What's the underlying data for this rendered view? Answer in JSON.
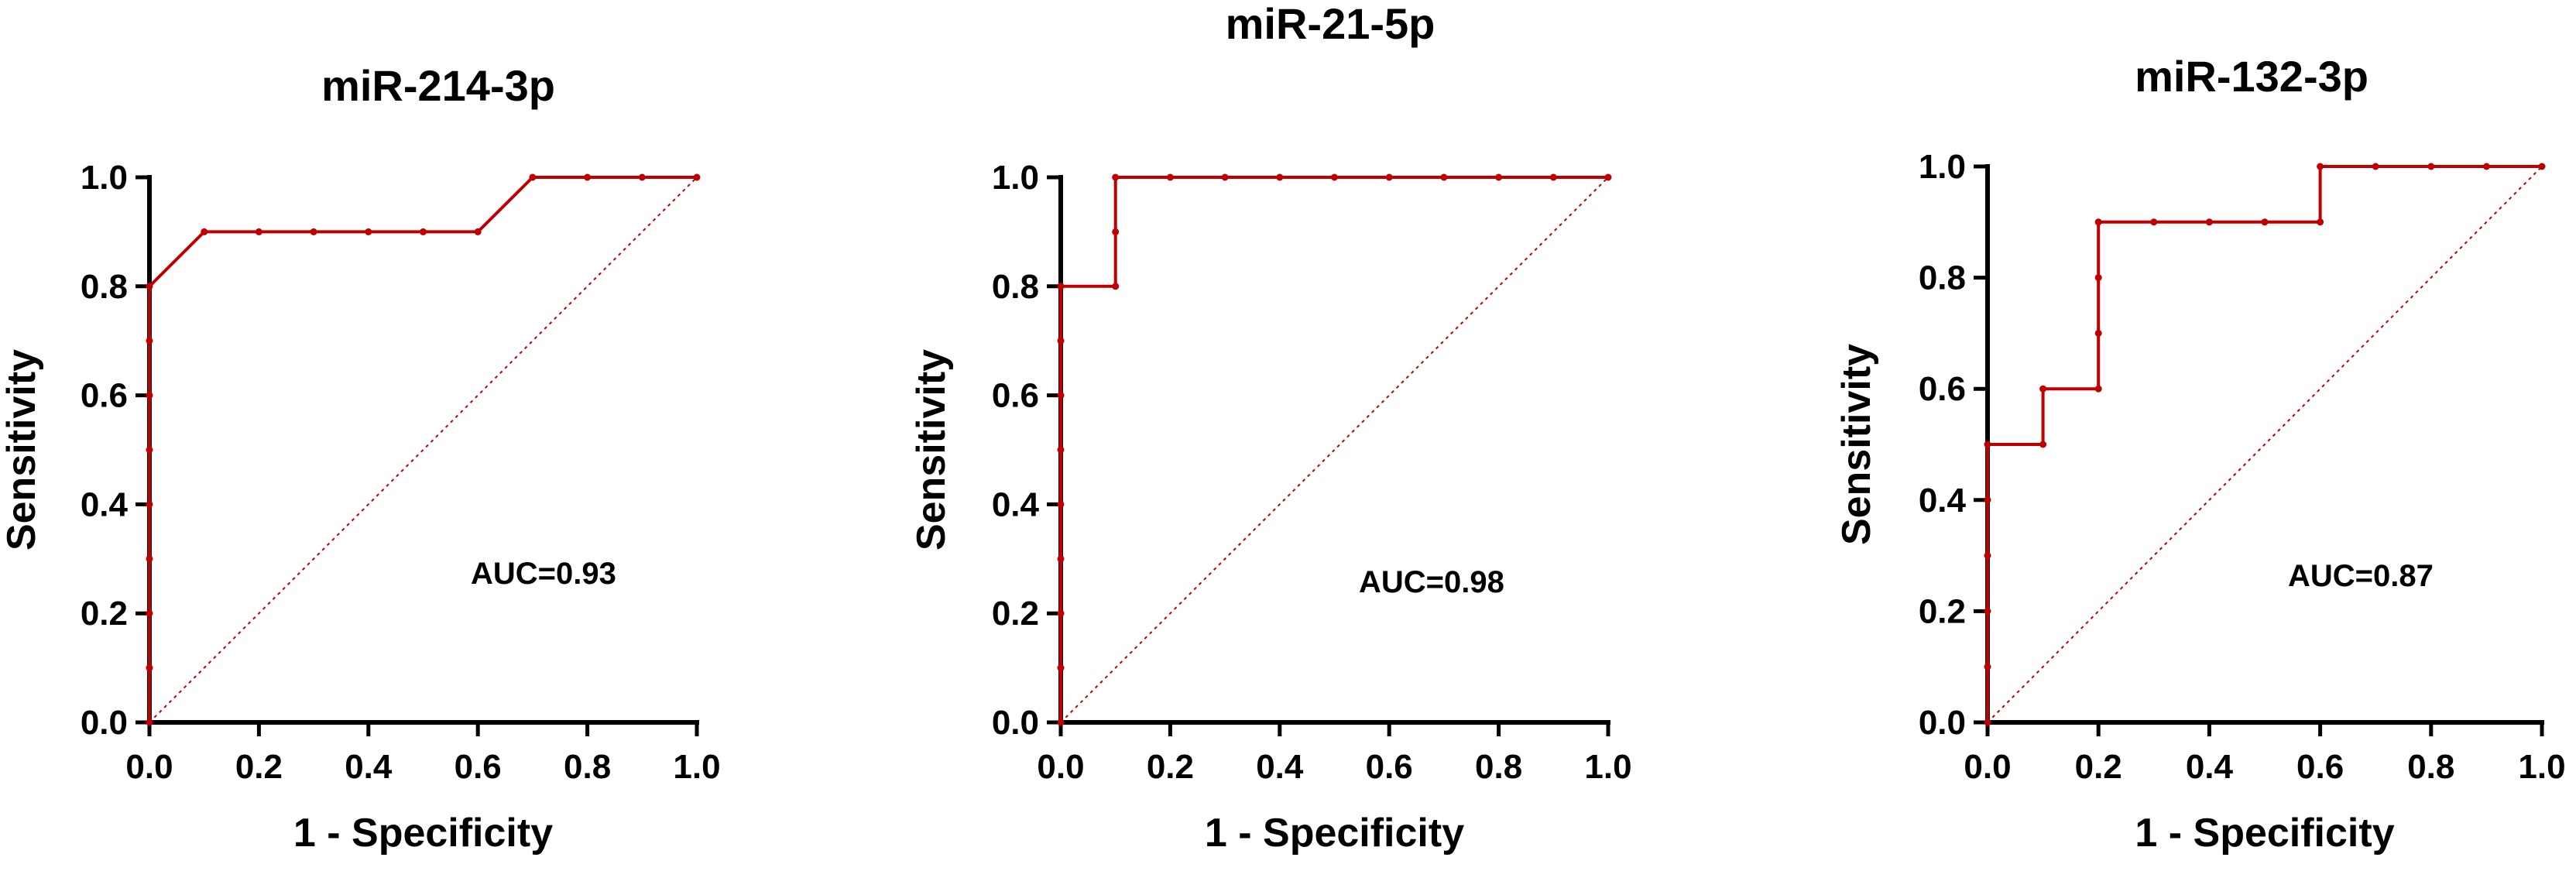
{
  "chart_data": [
    {
      "type": "line",
      "title": "miR-214-3p",
      "xlabel": "1 - Specificity",
      "ylabel": "Sensitivity",
      "xlim": [
        0,
        1
      ],
      "ylim": [
        0,
        1
      ],
      "xticks": [
        "0.0",
        "0.2",
        "0.4",
        "0.6",
        "0.8",
        "1.0"
      ],
      "yticks": [
        "0.0",
        "0.2",
        "0.4",
        "0.6",
        "0.8",
        "1.0"
      ],
      "annotation": "AUC=0.93",
      "series": [
        {
          "x": [
            0,
            0,
            0,
            0,
            0,
            0,
            0,
            0,
            0,
            0.1,
            0.2,
            0.3,
            0.4,
            0.5,
            0.6,
            0.7,
            0.8,
            0.9,
            1.0
          ],
          "y": [
            0,
            0.1,
            0.2,
            0.3,
            0.4,
            0.5,
            0.6,
            0.7,
            0.8,
            0.9,
            0.9,
            0.9,
            0.9,
            0.9,
            0.9,
            1.0,
            1.0,
            1.0,
            1.0
          ],
          "steps": false
        }
      ],
      "reference_line": true,
      "line_color": "#c00000"
    },
    {
      "type": "line",
      "title": "miR-21-5p",
      "xlabel": "1 - Specificity",
      "ylabel": "Sensitivity",
      "xlim": [
        0,
        1
      ],
      "ylim": [
        0,
        1
      ],
      "xticks": [
        "0.0",
        "0.2",
        "0.4",
        "0.6",
        "0.8",
        "1.0"
      ],
      "yticks": [
        "0.0",
        "0.2",
        "0.4",
        "0.6",
        "0.8",
        "1.0"
      ],
      "annotation": "AUC=0.98",
      "series": [
        {
          "x": [
            0,
            0,
            0,
            0,
            0,
            0,
            0,
            0,
            0,
            0.1,
            0.1,
            0.1,
            0.2,
            0.3,
            0.4,
            0.5,
            0.6,
            0.7,
            0.8,
            0.9,
            1.0
          ],
          "y": [
            0,
            0.1,
            0.2,
            0.3,
            0.4,
            0.5,
            0.6,
            0.7,
            0.8,
            0.8,
            0.9,
            1.0,
            1.0,
            1.0,
            1.0,
            1.0,
            1.0,
            1.0,
            1.0,
            1.0,
            1.0
          ],
          "steps": true
        }
      ],
      "reference_line": true,
      "line_color": "#c00000"
    },
    {
      "type": "line",
      "title": "miR-132-3p",
      "xlabel": "1 - Specificity",
      "ylabel": "Sensitivity",
      "xlim": [
        0,
        1
      ],
      "ylim": [
        0,
        1
      ],
      "xticks": [
        "0.0",
        "0.2",
        "0.4",
        "0.6",
        "0.8",
        "1.0"
      ],
      "yticks": [
        "0.0",
        "0.2",
        "0.4",
        "0.6",
        "0.8",
        "1.0"
      ],
      "annotation": "AUC=0.87",
      "series": [
        {
          "x": [
            0,
            0,
            0,
            0,
            0,
            0,
            0.1,
            0.1,
            0.2,
            0.2,
            0.2,
            0.2,
            0.3,
            0.4,
            0.5,
            0.6,
            0.6,
            0.7,
            0.8,
            0.9,
            1.0
          ],
          "y": [
            0,
            0.1,
            0.2,
            0.3,
            0.4,
            0.5,
            0.5,
            0.6,
            0.6,
            0.7,
            0.8,
            0.9,
            0.9,
            0.9,
            0.9,
            0.9,
            1.0,
            1.0,
            1.0,
            1.0,
            1.0
          ],
          "steps": true
        }
      ],
      "reference_line": true,
      "line_color": "#c00000"
    }
  ]
}
